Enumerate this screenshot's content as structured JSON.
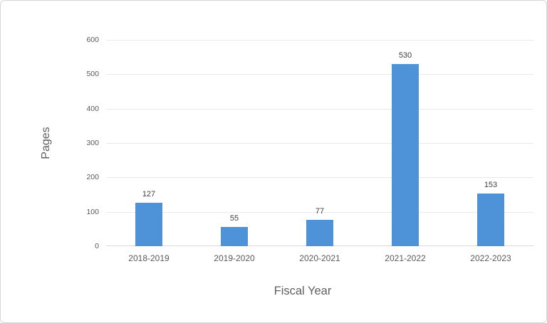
{
  "chart_data": {
    "type": "bar",
    "title": "",
    "categories": [
      "2018-2019",
      "2019-2020",
      "2020-2021",
      "2021-2022",
      "2022-2023"
    ],
    "values": [
      127,
      55,
      77,
      530,
      153
    ],
    "data_labels": [
      "127",
      "55",
      "77",
      "530",
      "153"
    ],
    "xlabel": "Fiscal Year",
    "ylabel": "Pages",
    "ylim": [
      0,
      600
    ],
    "yticks": [
      0,
      100,
      200,
      300,
      400,
      500,
      600
    ],
    "grid": true,
    "legend": false,
    "colors": {
      "bar": "#4E93D7",
      "gridline": "#E9E9E9",
      "axis_line": "#D9D9D9",
      "tick_label": "#595959",
      "category_label": "#595959",
      "data_label": "#404040",
      "axis_title": "#5F5F5F",
      "frame_border": "#D8D8D8",
      "background": "#FFFFFF"
    }
  }
}
